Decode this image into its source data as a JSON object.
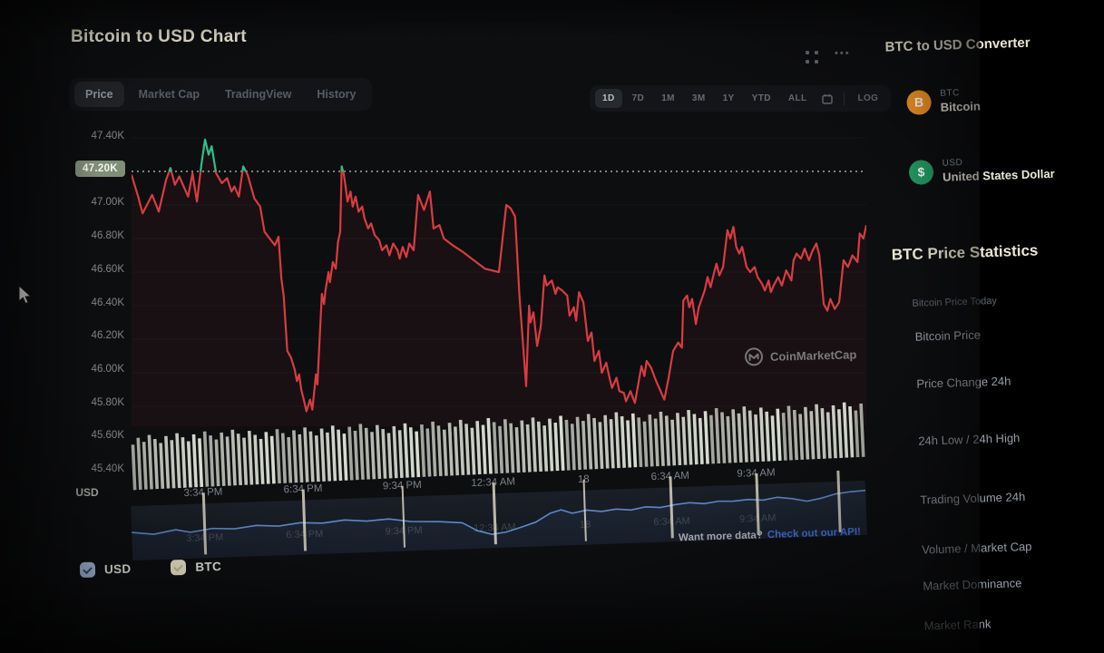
{
  "app": {
    "title": "Bitcoin to USD Chart"
  },
  "toolbar": {
    "tabs": [
      {
        "label": "Price",
        "active": true
      },
      {
        "label": "Market Cap",
        "active": false
      },
      {
        "label": "TradingView",
        "active": false
      },
      {
        "label": "History",
        "active": false
      }
    ],
    "ranges": [
      {
        "label": "1D",
        "active": true
      },
      {
        "label": "7D",
        "active": false
      },
      {
        "label": "1M",
        "active": false
      },
      {
        "label": "3M",
        "active": false
      },
      {
        "label": "1Y",
        "active": false
      },
      {
        "label": "YTD",
        "active": false
      },
      {
        "label": "ALL",
        "active": false
      }
    ],
    "log_label": "LOG"
  },
  "legend": [
    {
      "label": "USD",
      "box_color": "#a7c1e0",
      "check_color": "#33506e",
      "checked": true
    },
    {
      "label": "BTC",
      "box_color": "#f1e9ca",
      "check_color": "#c9bd92",
      "checked": true
    }
  ],
  "watermark": {
    "label": "CoinMarketCap"
  },
  "api_prompt": {
    "text": "Want more data?",
    "link_text": "Check out our API!"
  },
  "sidebar": {
    "converter_title": "BTC to USD Converter",
    "coins": [
      {
        "symbol": "BTC",
        "name": "Bitcoin",
        "icon_color": "#f7931a",
        "glyph": "B"
      },
      {
        "symbol": "USD",
        "name": "United States Dollar",
        "icon_color": "#1d9d5f",
        "glyph": "$"
      }
    ],
    "stats_title": "BTC Price Statistics",
    "stats_subtitle": "Bitcoin Price Today",
    "stat_rows": [
      "Bitcoin Price",
      "Price Change 24h",
      "24h Low / 24h High",
      "Trading Volume 24h",
      "Volume / Market Cap",
      "Market Dominance",
      "Market Rank"
    ]
  },
  "chart_data": {
    "type": "line",
    "title": "Bitcoin to USD Chart",
    "xlabel": "",
    "ylabel": "USD",
    "unit": "USD",
    "ylim": [
      45.4,
      47.4
    ],
    "grid": true,
    "y_ticks": [
      "47.40K",
      "47.20K",
      "47.00K",
      "46.80K",
      "46.60K",
      "46.40K",
      "46.20K",
      "46.00K",
      "45.80K",
      "45.60K",
      "45.40K"
    ],
    "threshold": {
      "value": 47.2,
      "label": "47.20K"
    },
    "x_ticks": [
      {
        "f": 0.099,
        "label": "3:34 PM"
      },
      {
        "f": 0.235,
        "label": "6:34 PM"
      },
      {
        "f": 0.37,
        "label": "9:34 PM"
      },
      {
        "f": 0.494,
        "label": "12:34 AM"
      },
      {
        "f": 0.617,
        "label": "18"
      },
      {
        "f": 0.735,
        "label": "6:34 AM"
      },
      {
        "f": 0.852,
        "label": "9:34 AM"
      },
      {
        "f": 0.963,
        "label": ""
      }
    ],
    "series": [
      {
        "name": "BTC price in USD (1D)",
        "color_up": "#27c289",
        "color_down": "#de3a41",
        "points": [
          [
            0.0,
            47.18
          ],
          [
            0.009,
            47.05
          ],
          [
            0.015,
            46.95
          ],
          [
            0.028,
            47.06
          ],
          [
            0.037,
            46.96
          ],
          [
            0.047,
            47.15
          ],
          [
            0.053,
            47.22
          ],
          [
            0.059,
            47.12
          ],
          [
            0.065,
            47.17
          ],
          [
            0.077,
            47.05
          ],
          [
            0.083,
            47.19
          ],
          [
            0.089,
            47.02
          ],
          [
            0.095,
            47.24
          ],
          [
            0.1,
            47.39
          ],
          [
            0.105,
            47.3
          ],
          [
            0.109,
            47.35
          ],
          [
            0.115,
            47.19
          ],
          [
            0.123,
            47.13
          ],
          [
            0.13,
            47.16
          ],
          [
            0.136,
            47.08
          ],
          [
            0.14,
            47.11
          ],
          [
            0.146,
            47.05
          ],
          [
            0.152,
            47.23
          ],
          [
            0.158,
            47.18
          ],
          [
            0.167,
            47.04
          ],
          [
            0.175,
            46.99
          ],
          [
            0.181,
            46.84
          ],
          [
            0.188,
            46.8
          ],
          [
            0.195,
            46.76
          ],
          [
            0.2,
            46.81
          ],
          [
            0.204,
            46.56
          ],
          [
            0.207,
            46.46
          ],
          [
            0.212,
            46.13
          ],
          [
            0.217,
            46.09
          ],
          [
            0.222,
            46.02
          ],
          [
            0.225,
            45.95
          ],
          [
            0.228,
            45.99
          ],
          [
            0.231,
            45.9
          ],
          [
            0.235,
            45.83
          ],
          [
            0.238,
            45.77
          ],
          [
            0.243,
            45.84
          ],
          [
            0.246,
            45.78
          ],
          [
            0.251,
            45.99
          ],
          [
            0.253,
            45.93
          ],
          [
            0.259,
            46.47
          ],
          [
            0.262,
            46.41
          ],
          [
            0.264,
            46.49
          ],
          [
            0.268,
            46.6
          ],
          [
            0.27,
            46.54
          ],
          [
            0.274,
            46.66
          ],
          [
            0.278,
            46.62
          ],
          [
            0.281,
            46.78
          ],
          [
            0.284,
            46.84
          ],
          [
            0.286,
            47.23
          ],
          [
            0.289,
            47.18
          ],
          [
            0.291,
            47.12
          ],
          [
            0.294,
            47.02
          ],
          [
            0.298,
            47.08
          ],
          [
            0.301,
            46.99
          ],
          [
            0.305,
            47.05
          ],
          [
            0.309,
            46.96
          ],
          [
            0.314,
            46.99
          ],
          [
            0.317,
            46.92
          ],
          [
            0.322,
            46.86
          ],
          [
            0.326,
            46.89
          ],
          [
            0.331,
            46.82
          ],
          [
            0.337,
            46.79
          ],
          [
            0.341,
            46.73
          ],
          [
            0.347,
            46.76
          ],
          [
            0.351,
            46.7
          ],
          [
            0.356,
            46.77
          ],
          [
            0.362,
            46.73
          ],
          [
            0.365,
            46.68
          ],
          [
            0.369,
            46.75
          ],
          [
            0.374,
            46.69
          ],
          [
            0.378,
            46.77
          ],
          [
            0.384,
            46.73
          ],
          [
            0.39,
            47.06
          ],
          [
            0.398,
            46.97
          ],
          [
            0.406,
            47.08
          ],
          [
            0.411,
            46.86
          ],
          [
            0.419,
            46.88
          ],
          [
            0.425,
            46.8
          ],
          [
            0.437,
            46.76
          ],
          [
            0.451,
            46.72
          ],
          [
            0.463,
            46.68
          ],
          [
            0.481,
            46.62
          ],
          [
            0.5,
            46.6
          ],
          [
            0.51,
            47.0
          ],
          [
            0.516,
            46.98
          ],
          [
            0.522,
            46.93
          ],
          [
            0.528,
            46.45
          ],
          [
            0.537,
            45.92
          ],
          [
            0.541,
            46.4
          ],
          [
            0.543,
            46.3
          ],
          [
            0.547,
            46.36
          ],
          [
            0.552,
            46.16
          ],
          [
            0.557,
            46.28
          ],
          [
            0.562,
            46.58
          ],
          [
            0.565,
            46.52
          ],
          [
            0.572,
            46.55
          ],
          [
            0.577,
            46.47
          ],
          [
            0.58,
            46.51
          ],
          [
            0.586,
            46.49
          ],
          [
            0.593,
            46.46
          ],
          [
            0.596,
            46.34
          ],
          [
            0.602,
            46.39
          ],
          [
            0.605,
            46.31
          ],
          [
            0.609,
            46.48
          ],
          [
            0.615,
            46.42
          ],
          [
            0.621,
            46.19
          ],
          [
            0.626,
            46.24
          ],
          [
            0.63,
            46.07
          ],
          [
            0.636,
            46.13
          ],
          [
            0.64,
            46.0
          ],
          [
            0.646,
            46.06
          ],
          [
            0.651,
            45.96
          ],
          [
            0.654,
            45.91
          ],
          [
            0.66,
            45.97
          ],
          [
            0.664,
            45.89
          ],
          [
            0.67,
            45.88
          ],
          [
            0.673,
            45.83
          ],
          [
            0.679,
            45.89
          ],
          [
            0.685,
            45.82
          ],
          [
            0.694,
            46.04
          ],
          [
            0.698,
            45.98
          ],
          [
            0.701,
            46.07
          ],
          [
            0.707,
            46.03
          ],
          [
            0.714,
            45.95
          ],
          [
            0.719,
            45.9
          ],
          [
            0.725,
            45.84
          ],
          [
            0.731,
            45.97
          ],
          [
            0.737,
            46.13
          ],
          [
            0.744,
            46.18
          ],
          [
            0.749,
            46.15
          ],
          [
            0.751,
            46.43
          ],
          [
            0.756,
            46.46
          ],
          [
            0.759,
            46.39
          ],
          [
            0.763,
            46.44
          ],
          [
            0.768,
            46.29
          ],
          [
            0.772,
            46.39
          ],
          [
            0.78,
            46.49
          ],
          [
            0.784,
            46.57
          ],
          [
            0.788,
            46.51
          ],
          [
            0.793,
            46.6
          ],
          [
            0.796,
            46.65
          ],
          [
            0.8,
            46.58
          ],
          [
            0.805,
            46.63
          ],
          [
            0.811,
            46.85
          ],
          [
            0.815,
            46.8
          ],
          [
            0.819,
            46.87
          ],
          [
            0.823,
            46.75
          ],
          [
            0.827,
            46.71
          ],
          [
            0.831,
            46.75
          ],
          [
            0.837,
            46.63
          ],
          [
            0.842,
            46.6
          ],
          [
            0.848,
            46.63
          ],
          [
            0.852,
            46.57
          ],
          [
            0.858,
            46.53
          ],
          [
            0.862,
            46.49
          ],
          [
            0.867,
            46.55
          ],
          [
            0.87,
            46.48
          ],
          [
            0.874,
            46.52
          ],
          [
            0.88,
            46.57
          ],
          [
            0.885,
            46.52
          ],
          [
            0.891,
            46.61
          ],
          [
            0.898,
            46.55
          ],
          [
            0.901,
            46.67
          ],
          [
            0.905,
            46.71
          ],
          [
            0.911,
            46.68
          ],
          [
            0.916,
            46.74
          ],
          [
            0.922,
            46.67
          ],
          [
            0.926,
            46.72
          ],
          [
            0.932,
            46.77
          ],
          [
            0.936,
            46.7
          ],
          [
            0.942,
            46.41
          ],
          [
            0.947,
            46.37
          ],
          [
            0.951,
            46.44
          ],
          [
            0.957,
            46.38
          ],
          [
            0.963,
            46.42
          ],
          [
            0.969,
            46.67
          ],
          [
            0.975,
            46.63
          ],
          [
            0.981,
            46.7
          ],
          [
            0.988,
            46.66
          ],
          [
            0.991,
            46.83
          ],
          [
            0.996,
            46.8
          ],
          [
            1.0,
            46.88
          ]
        ]
      }
    ],
    "navigator": {
      "color": "#5b87cf",
      "points": [
        [
          0.0,
          0.45
        ],
        [
          0.03,
          0.52
        ],
        [
          0.06,
          0.42
        ],
        [
          0.08,
          0.5
        ],
        [
          0.11,
          0.42
        ],
        [
          0.14,
          0.45
        ],
        [
          0.17,
          0.38
        ],
        [
          0.2,
          0.42
        ],
        [
          0.23,
          0.35
        ],
        [
          0.26,
          0.38
        ],
        [
          0.29,
          0.32
        ],
        [
          0.32,
          0.37
        ],
        [
          0.35,
          0.33
        ],
        [
          0.38,
          0.42
        ],
        [
          0.42,
          0.45
        ],
        [
          0.45,
          0.5
        ],
        [
          0.47,
          0.72
        ],
        [
          0.49,
          0.83
        ],
        [
          0.51,
          0.78
        ],
        [
          0.53,
          0.67
        ],
        [
          0.55,
          0.55
        ],
        [
          0.57,
          0.33
        ],
        [
          0.585,
          0.25
        ],
        [
          0.6,
          0.35
        ],
        [
          0.62,
          0.28
        ],
        [
          0.64,
          0.33
        ],
        [
          0.66,
          0.28
        ],
        [
          0.68,
          0.32
        ],
        [
          0.7,
          0.25
        ],
        [
          0.72,
          0.28
        ],
        [
          0.74,
          0.22
        ],
        [
          0.76,
          0.18
        ],
        [
          0.78,
          0.22
        ],
        [
          0.8,
          0.17
        ],
        [
          0.82,
          0.18
        ],
        [
          0.84,
          0.15
        ],
        [
          0.86,
          0.18
        ],
        [
          0.88,
          0.12
        ],
        [
          0.9,
          0.17
        ],
        [
          0.92,
          0.25
        ],
        [
          0.94,
          0.18
        ],
        [
          0.96,
          0.08
        ],
        [
          0.98,
          0.04
        ],
        [
          1.0,
          0.02
        ]
      ]
    },
    "volume": {
      "bars": 132,
      "color": "#dbe0d4"
    }
  }
}
